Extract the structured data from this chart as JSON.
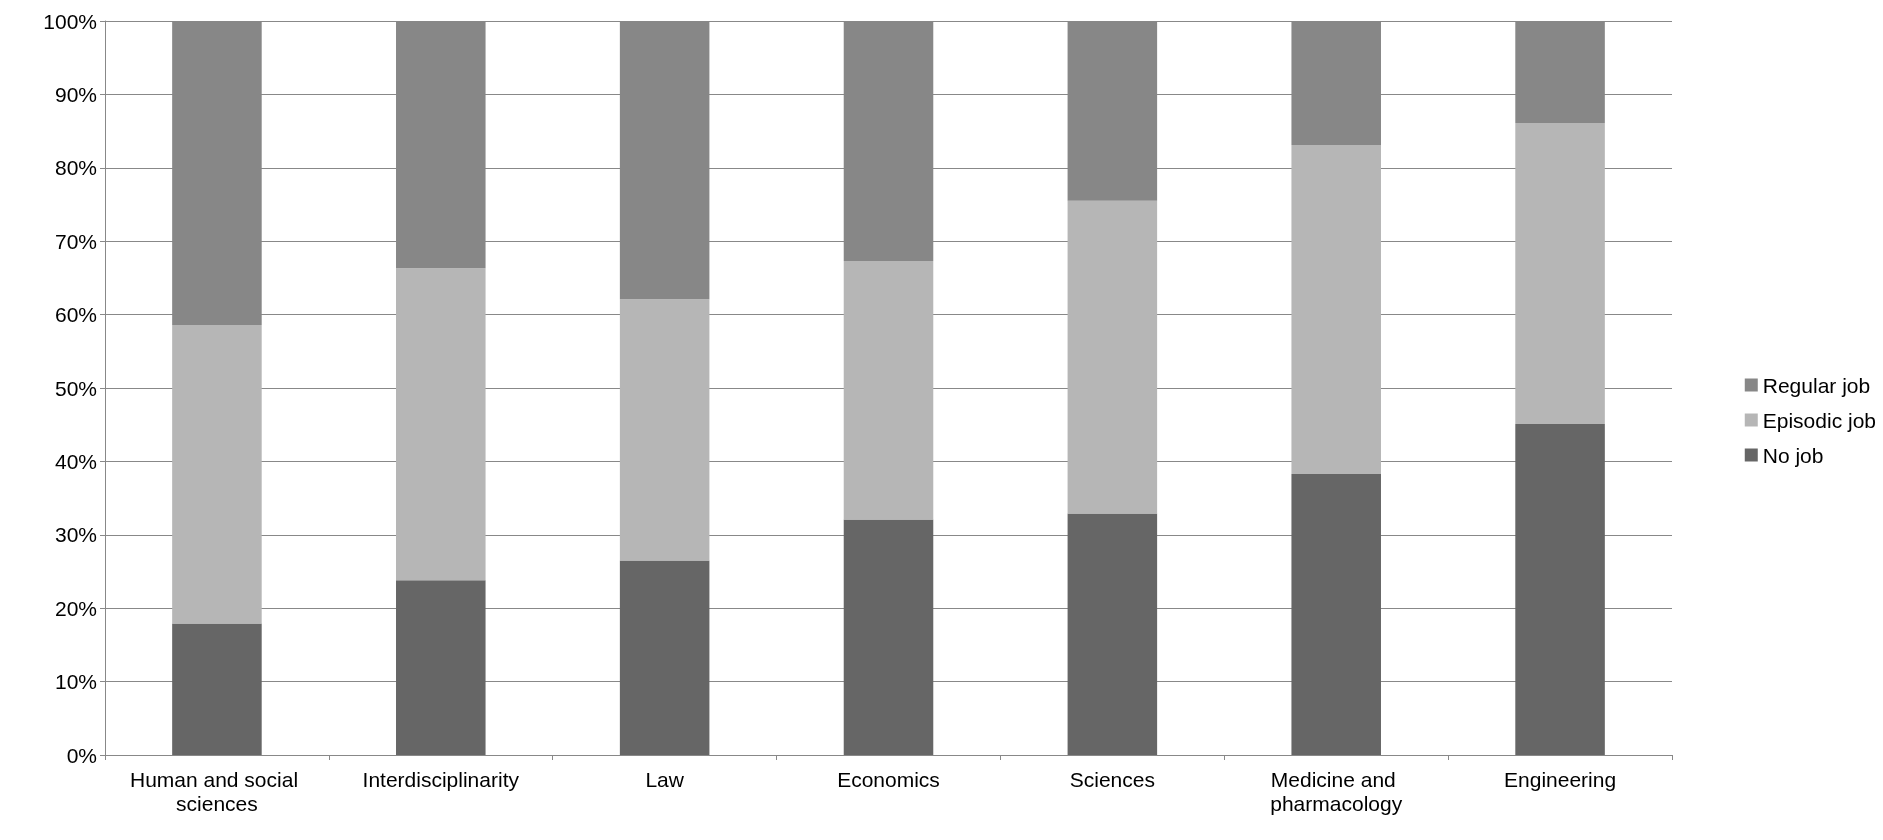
{
  "chart_data": {
    "type": "bar",
    "stacked": true,
    "categories": [
      "Human and social sciences",
      "Interdisciplinarity",
      "Law",
      "Economics",
      "Sciences",
      "Medicine and pharmacology",
      "Engineering"
    ],
    "series": [
      {
        "name": "No job",
        "color": "#666666",
        "values": [
          17.9,
          23.8,
          26.5,
          32.1,
          32.9,
          38.3,
          45.1
        ]
      },
      {
        "name": "Episodic job",
        "color": "#b6b6b6",
        "values": [
          40.7,
          42.5,
          35.6,
          35.2,
          42.6,
          44.8,
          41.0
        ]
      },
      {
        "name": "Regular job",
        "color": "#878787",
        "values": [
          41.4,
          33.7,
          37.9,
          32.7,
          24.5,
          16.9,
          13.9
        ]
      }
    ],
    "ylim": [
      0,
      100
    ],
    "yticks": [
      {
        "value": 0,
        "label": "0%"
      },
      {
        "value": 10,
        "label": "10%"
      },
      {
        "value": 20,
        "label": "20%"
      },
      {
        "value": 30,
        "label": "30%"
      },
      {
        "value": 40,
        "label": "40%"
      },
      {
        "value": 50,
        "label": "50%"
      },
      {
        "value": 60,
        "label": "60%"
      },
      {
        "value": 70,
        "label": "70%"
      },
      {
        "value": 80,
        "label": "80%"
      },
      {
        "value": 90,
        "label": "90%"
      },
      {
        "value": 100,
        "label": "100%"
      }
    ],
    "grid": "y",
    "legend": "right"
  }
}
